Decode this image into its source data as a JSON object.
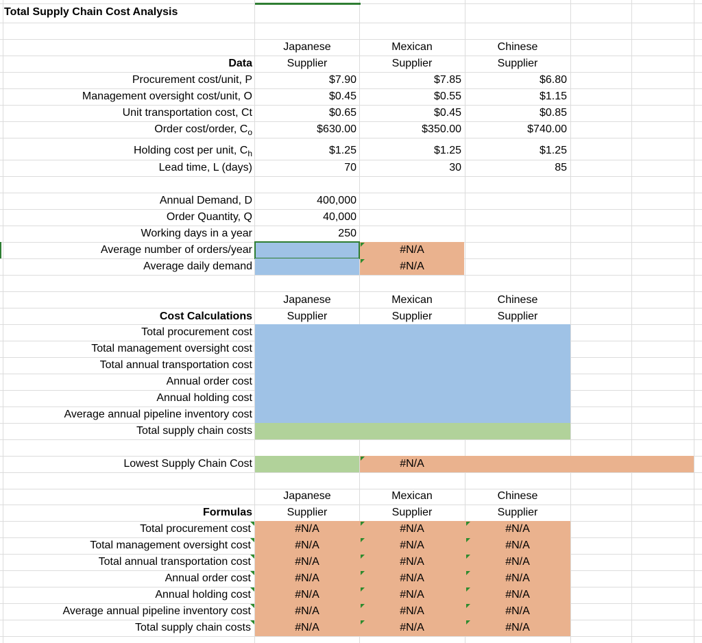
{
  "title": "Total Supply Chain Cost Analysis",
  "colors": {
    "blue": "#9fc2e6",
    "orange": "#eab28e",
    "green": "#b1d29a",
    "gridline": "#dcdcdc",
    "error_marker": "#2e8b2e"
  },
  "headers": {
    "data": [
      [
        "Japanese",
        "Supplier"
      ],
      [
        "Mexican",
        "Supplier"
      ],
      [
        "Chinese",
        "Supplier"
      ]
    ],
    "cost": [
      [
        "Japanese",
        "Supplier"
      ],
      [
        "Mexican",
        "Supplier"
      ],
      [
        "Chinese",
        "Supplier"
      ]
    ],
    "formulas": [
      [
        "Japanese",
        "Supplier"
      ],
      [
        "Mexican",
        "Supplier"
      ],
      [
        "Chinese",
        "Supplier"
      ]
    ]
  },
  "data_section": {
    "label": "Data",
    "rows": [
      {
        "label": "Procurement cost/unit, P",
        "values": [
          "$7.90",
          "$7.85",
          "$6.80"
        ]
      },
      {
        "label": "Management oversight cost/unit, O",
        "values": [
          "$0.45",
          "$0.55",
          "$1.15"
        ]
      },
      {
        "label": "Unit transportation cost, Ct",
        "values": [
          "$0.65",
          "$0.45",
          "$0.85"
        ]
      },
      {
        "label": "Order cost/order, C",
        "sub": "o",
        "values": [
          "$630.00",
          "$350.00",
          "$740.00"
        ]
      },
      {
        "label": "Holding cost per unit, C",
        "sub": "h",
        "values": [
          "$1.25",
          "$1.25",
          "$1.25"
        ]
      },
      {
        "label": "Lead time, L (days)",
        "values": [
          "70",
          "30",
          "85"
        ]
      }
    ]
  },
  "demand_section": {
    "rows": [
      {
        "label": "Annual Demand, D",
        "value": "400,000"
      },
      {
        "label": "Order Quantity, Q",
        "value": "40,000"
      },
      {
        "label": "Working days in a year",
        "value": "250"
      },
      {
        "label": "Average number of orders/year",
        "value": "",
        "na": "#N/A"
      },
      {
        "label": "Average daily demand",
        "value": "",
        "na": "#N/A"
      }
    ]
  },
  "cost_section": {
    "label": "Cost Calculations",
    "rows": [
      "Total procurement cost",
      "Total management oversight cost",
      "Total annual transportation cost",
      "Annual order cost",
      "Annual holding cost",
      "Average annual pipeline inventory cost",
      "Total supply chain costs"
    ]
  },
  "lowest": {
    "label": "Lowest Supply Chain Cost",
    "na": "#N/A"
  },
  "formulas_section": {
    "label": "Formulas",
    "rows": [
      {
        "label": "Total procurement cost",
        "values": [
          "#N/A",
          "#N/A",
          "#N/A"
        ]
      },
      {
        "label": "Total management oversight cost",
        "values": [
          "#N/A",
          "#N/A",
          "#N/A"
        ]
      },
      {
        "label": "Total annual transportation cost",
        "values": [
          "#N/A",
          "#N/A",
          "#N/A"
        ]
      },
      {
        "label": "Annual order cost",
        "values": [
          "#N/A",
          "#N/A",
          "#N/A"
        ]
      },
      {
        "label": "Annual holding cost",
        "values": [
          "#N/A",
          "#N/A",
          "#N/A"
        ]
      },
      {
        "label": "Average annual pipeline inventory cost",
        "values": [
          "#N/A",
          "#N/A",
          "#N/A"
        ]
      },
      {
        "label": "Total supply chain costs",
        "values": [
          "#N/A",
          "#N/A",
          "#N/A"
        ]
      }
    ]
  }
}
